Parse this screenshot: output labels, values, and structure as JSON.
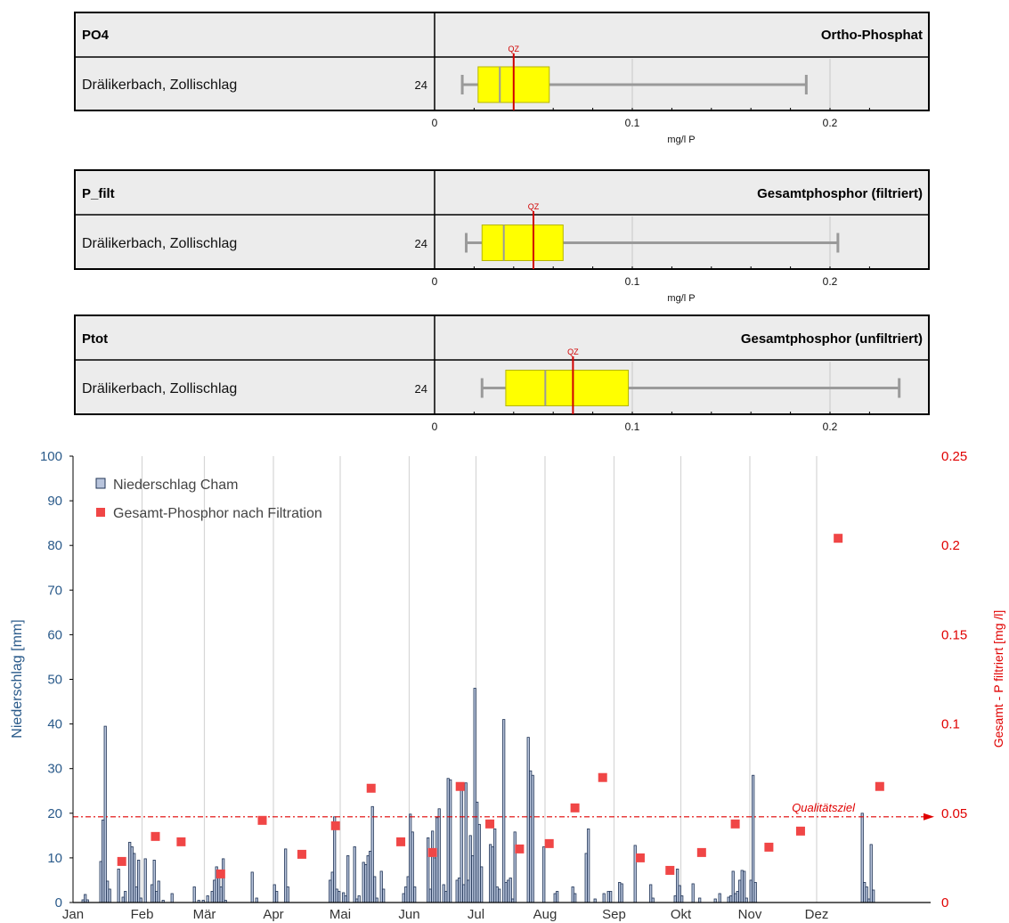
{
  "chart_data": [
    {
      "type": "box",
      "code": "PO4",
      "title": "Ortho-Phosphat",
      "station": "Drälikerbach, Zollischlag",
      "n": "24",
      "whisker_low": 0.014,
      "q1": 0.022,
      "median": 0.033,
      "q3": 0.058,
      "whisker_high": 0.188,
      "qz_value": 0.04,
      "qz_label": "QZ",
      "xlim": [
        0,
        0.25
      ],
      "ticks": [
        "0",
        "0.1",
        "0.2"
      ],
      "unit": "mg/l P"
    },
    {
      "type": "box",
      "code": "P_filt",
      "title": "Gesamtphosphor (filtriert)",
      "station": "Drälikerbach, Zollischlag",
      "n": "24",
      "whisker_low": 0.016,
      "q1": 0.024,
      "median": 0.035,
      "q3": 0.065,
      "whisker_high": 0.204,
      "qz_value": 0.05,
      "qz_label": "QZ",
      "xlim": [
        0,
        0.25
      ],
      "ticks": [
        "0",
        "0.1",
        "0.2"
      ],
      "unit": "mg/l P"
    },
    {
      "type": "box",
      "code": "Ptot",
      "title": "Gesamtphosphor (unfiltriert)",
      "station": "Drälikerbach, Zollischlag",
      "n": "24",
      "whisker_low": 0.024,
      "q1": 0.036,
      "median": 0.056,
      "q3": 0.098,
      "whisker_high": 0.235,
      "qz_value": 0.07,
      "qz_label": "QZ",
      "xlim": [
        0,
        0.25
      ],
      "ticks": [
        "0",
        "0.1",
        "0.2"
      ],
      "unit": ""
    },
    {
      "type": "bar+scatter",
      "months": [
        "Jan",
        "Feb",
        "Mär",
        "Apr",
        "Mai",
        "Jun",
        "Jul",
        "Aug",
        "Sep",
        "Okt",
        "Nov",
        "Dez"
      ],
      "ylabel_left": "Niederschlag  [mm]",
      "ylabel_right": "Gesamt - P filtriert  [mg /l]",
      "ylim_left": [
        0,
        100
      ],
      "ylim_right": [
        0,
        0.25
      ],
      "yticks_left": [
        "0",
        "10",
        "20",
        "30",
        "40",
        "50",
        "60",
        "70",
        "80",
        "90",
        "100"
      ],
      "yticks_right": [
        "0",
        "0.05",
        "0.1",
        "0.15",
        "0.2",
        "0.25"
      ],
      "legend": {
        "bars": "Niederschlag Cham",
        "points": "Gesamt-Phosphor nach Filtration",
        "position": "top-left"
      },
      "colors": {
        "bars": "#b8c4dc",
        "bar_stroke": "#1f3355",
        "points": "#f04646",
        "target": "#e00000"
      },
      "target_label": "Qualitätsziel",
      "target_value": 0.048,
      "rain_day_values": [
        [
          4,
          0.6
        ],
        [
          5,
          1.8
        ],
        [
          6,
          0.6
        ],
        [
          12,
          9.2
        ],
        [
          13,
          18.5
        ],
        [
          14,
          39.5
        ],
        [
          15,
          4.8
        ],
        [
          16,
          3.0
        ],
        [
          20,
          7.5
        ],
        [
          22,
          1.2
        ],
        [
          23,
          2.5
        ],
        [
          25,
          13.5
        ],
        [
          26,
          12.5
        ],
        [
          27,
          11.0
        ],
        [
          28,
          3.5
        ],
        [
          29,
          9.5
        ],
        [
          30,
          1.0
        ],
        [
          32,
          9.8
        ],
        [
          35,
          4.0
        ],
        [
          36,
          9.5
        ],
        [
          37,
          2.5
        ],
        [
          38,
          4.8
        ],
        [
          40,
          0.5
        ],
        [
          44,
          2.0
        ],
        [
          54,
          3.5
        ],
        [
          56,
          0.5
        ],
        [
          58,
          0.5
        ],
        [
          60,
          1.5
        ],
        [
          62,
          2.5
        ],
        [
          63,
          5.0
        ],
        [
          64,
          8.0
        ],
        [
          65,
          6.5
        ],
        [
          66,
          3.5
        ],
        [
          67,
          9.8
        ],
        [
          68,
          0.5
        ],
        [
          80,
          6.8
        ],
        [
          82,
          1.0
        ],
        [
          90,
          4.0
        ],
        [
          91,
          2.5
        ],
        [
          95,
          12.0
        ],
        [
          96,
          3.5
        ],
        [
          115,
          5.0
        ],
        [
          116,
          6.8
        ],
        [
          117,
          19.2
        ],
        [
          118,
          3.0
        ],
        [
          119,
          2.5
        ],
        [
          121,
          2.2
        ],
        [
          122,
          1.5
        ],
        [
          123,
          10.5
        ],
        [
          126,
          12.5
        ],
        [
          127,
          0.8
        ],
        [
          128,
          1.5
        ],
        [
          130,
          9.0
        ],
        [
          131,
          8.5
        ],
        [
          132,
          10.5
        ],
        [
          133,
          11.5
        ],
        [
          134,
          21.5
        ],
        [
          135,
          5.8
        ],
        [
          136,
          1.0
        ],
        [
          138,
          7.0
        ],
        [
          139,
          3.0
        ],
        [
          148,
          2.0
        ],
        [
          149,
          3.5
        ],
        [
          150,
          5.8
        ],
        [
          151,
          19.8
        ],
        [
          152,
          15.8
        ],
        [
          153,
          3.5
        ],
        [
          159,
          14.5
        ],
        [
          160,
          3.0
        ],
        [
          161,
          16.0
        ],
        [
          162,
          10.0
        ],
        [
          163,
          19.0
        ],
        [
          164,
          21.0
        ],
        [
          166,
          4.0
        ],
        [
          167,
          2.5
        ],
        [
          168,
          27.8
        ],
        [
          169,
          27.5
        ],
        [
          172,
          5.0
        ],
        [
          173,
          5.5
        ],
        [
          174,
          25.8
        ],
        [
          175,
          4.0
        ],
        [
          176,
          26.8
        ],
        [
          177,
          5.0
        ],
        [
          178,
          15.0
        ],
        [
          179,
          10.5
        ],
        [
          180,
          48.0
        ],
        [
          181,
          22.5
        ],
        [
          182,
          17.5
        ],
        [
          183,
          8.0
        ],
        [
          187,
          13.0
        ],
        [
          188,
          12.5
        ],
        [
          189,
          16.5
        ],
        [
          190,
          3.5
        ],
        [
          191,
          3.0
        ],
        [
          193,
          41.0
        ],
        [
          194,
          4.5
        ],
        [
          195,
          5.0
        ],
        [
          196,
          5.5
        ],
        [
          197,
          0.8
        ],
        [
          198,
          15.8
        ],
        [
          204,
          37.0
        ],
        [
          205,
          29.5
        ],
        [
          206,
          28.5
        ],
        [
          211,
          12.5
        ],
        [
          216,
          2.0
        ],
        [
          217,
          2.5
        ],
        [
          224,
          3.5
        ],
        [
          225,
          2.0
        ],
        [
          230,
          11.0
        ],
        [
          231,
          16.5
        ],
        [
          234,
          0.8
        ],
        [
          238,
          2.0
        ],
        [
          240,
          2.5
        ],
        [
          241,
          2.5
        ],
        [
          245,
          4.5
        ],
        [
          246,
          4.2
        ],
        [
          252,
          12.8
        ],
        [
          259,
          4.0
        ],
        [
          260,
          1.0
        ],
        [
          270,
          1.5
        ],
        [
          271,
          7.5
        ],
        [
          272,
          3.8
        ],
        [
          273,
          1.5
        ],
        [
          278,
          4.2
        ],
        [
          281,
          1.0
        ],
        [
          288,
          0.8
        ],
        [
          290,
          2.0
        ],
        [
          294,
          1.2
        ],
        [
          295,
          1.5
        ],
        [
          296,
          7.0
        ],
        [
          297,
          2.0
        ],
        [
          298,
          2.5
        ],
        [
          299,
          5.0
        ],
        [
          300,
          7.2
        ],
        [
          301,
          7.0
        ],
        [
          302,
          1.0
        ],
        [
          304,
          5.0
        ],
        [
          305,
          28.5
        ],
        [
          306,
          4.5
        ],
        [
          354,
          20.0
        ],
        [
          355,
          4.5
        ],
        [
          356,
          3.5
        ],
        [
          357,
          0.8
        ],
        [
          358,
          13.0
        ],
        [
          359,
          2.8
        ]
      ],
      "phosphor_day_values": [
        [
          19,
          0.023
        ],
        [
          36,
          0.037
        ],
        [
          49,
          0.034
        ],
        [
          69,
          0.016
        ],
        [
          90,
          0.046
        ],
        [
          110,
          0.027
        ],
        [
          127,
          0.043
        ],
        [
          145,
          0.064
        ],
        [
          160,
          0.034
        ],
        [
          176,
          0.028
        ],
        [
          190,
          0.065
        ],
        [
          205,
          0.044
        ],
        [
          220,
          0.03
        ],
        [
          235,
          0.033
        ],
        [
          248,
          0.053
        ],
        [
          262,
          0.07
        ],
        [
          281,
          0.025
        ],
        [
          296,
          0.018
        ],
        [
          312,
          0.028
        ],
        [
          329,
          0.044
        ],
        [
          346,
          0.031
        ],
        [
          362,
          0.04
        ],
        [
          381,
          0.204
        ],
        [
          402,
          0.065
        ]
      ]
    }
  ]
}
